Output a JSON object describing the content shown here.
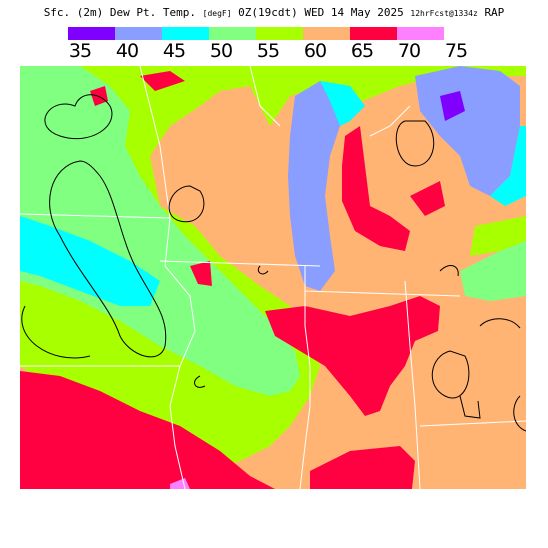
{
  "title": {
    "main": "Sfc. (2m) Dew Pt. Temp.",
    "units": "[degF]",
    "valid_time": "0Z(19cdt) WED 14 May 2025",
    "forecast": "12hrFcst@1334z",
    "model": "RAP"
  },
  "legend": {
    "colors": [
      "#8000ff",
      "#8a9eff",
      "#00ffff",
      "#80ff80",
      "#a8ff00",
      "#ffb474",
      "#ff0040",
      "#ff80ff"
    ],
    "labels": [
      "35",
      "40",
      "45",
      "50",
      "55",
      "60",
      "65",
      "70",
      "75"
    ]
  },
  "map": {
    "region": "Upper Midwest / Great Lakes",
    "colors": {
      "dp_35": "#8000ff",
      "dp_40": "#8a9eff",
      "dp_45": "#00ffff",
      "dp_50": "#80ff80",
      "dp_55": "#a8ff00",
      "dp_60": "#ffb474",
      "dp_65": "#ff0040",
      "dp_70": "#ff80ff",
      "boundary": "#ffffff",
      "contour": "#000000"
    }
  }
}
